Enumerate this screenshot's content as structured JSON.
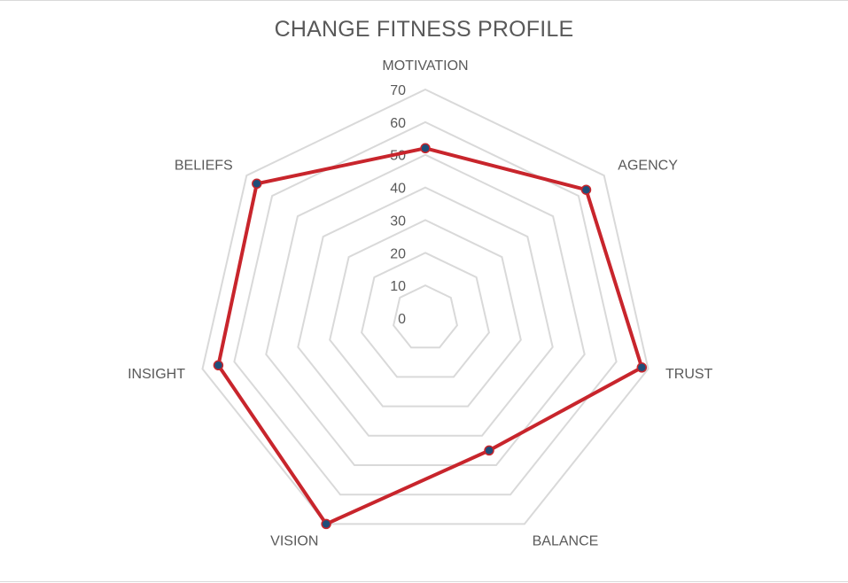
{
  "chart_data": {
    "type": "radar",
    "title": "CHANGE FITNESS PROFILE",
    "categories": [
      "MOTIVATION",
      "AGENCY",
      "TRUST",
      "BALANCE",
      "VISION",
      "INSIGHT",
      "BELIEFS"
    ],
    "series": [
      {
        "values": [
          52,
          63,
          68,
          45,
          70,
          65,
          66
        ]
      }
    ],
    "rmin": 0,
    "rmax": 70,
    "ticks": [
      0,
      10,
      20,
      30,
      40,
      50,
      60,
      70
    ],
    "grid": true,
    "legend": "none",
    "colors": {
      "line": "#c8252c",
      "marker_fill": "#1f4e79",
      "grid": "#d9d9d9",
      "text": "#595959"
    }
  }
}
